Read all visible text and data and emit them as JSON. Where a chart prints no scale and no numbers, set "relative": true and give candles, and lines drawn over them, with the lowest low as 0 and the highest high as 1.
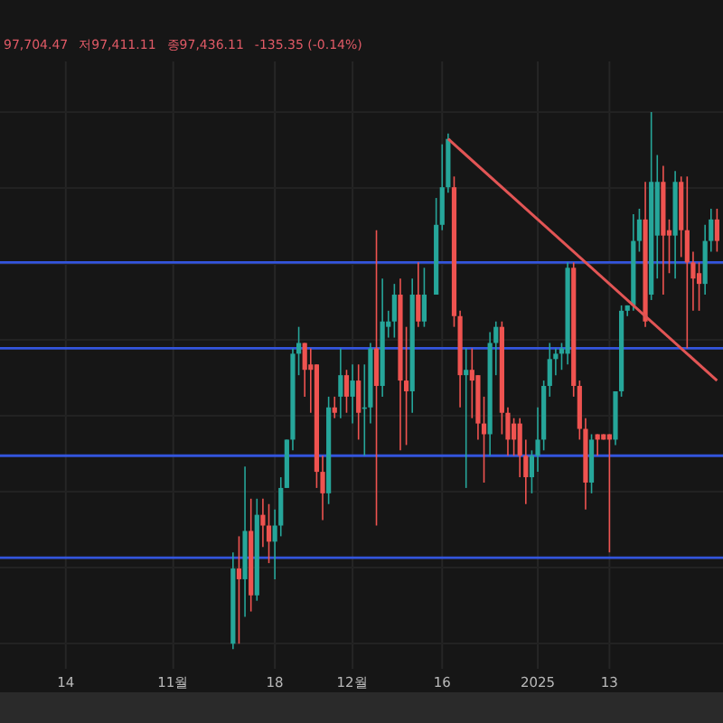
{
  "chart_data": {
    "type": "candlestick",
    "relative": true,
    "grid": true,
    "annotations": [
      "97,704.47",
      "저97,411.11",
      "종97,436.11",
      "-135.35 (-0.14%)"
    ],
    "xlim": [
      "2024-10-03",
      "2025-02-01"
    ],
    "xticks": [
      {
        "value": "2024-10-14",
        "label": "14"
      },
      {
        "value": "2024-11-01",
        "label": "11월"
      },
      {
        "value": "2024-11-18",
        "label": "18"
      },
      {
        "value": "2024-12-01",
        "label": "12월"
      },
      {
        "value": "2024-12-16",
        "label": "16"
      },
      {
        "value": "2025-01-01",
        "label": "2025"
      },
      {
        "value": "2025-01-13",
        "label": "13"
      }
    ],
    "x": [
      "2024-11-11",
      "2024-11-12",
      "2024-11-13",
      "2024-11-14",
      "2024-11-15",
      "2024-11-16",
      "2024-11-17",
      "2024-11-18",
      "2024-11-19",
      "2024-11-20",
      "2024-11-21",
      "2024-11-22",
      "2024-11-23",
      "2024-11-24",
      "2024-11-25",
      "2024-11-26",
      "2024-11-27",
      "2024-11-28",
      "2024-11-29",
      "2024-11-30",
      "2024-12-01",
      "2024-12-02",
      "2024-12-03",
      "2024-12-04",
      "2024-12-05",
      "2024-12-06",
      "2024-12-07",
      "2024-12-08",
      "2024-12-09",
      "2024-12-10",
      "2024-12-11",
      "2024-12-12",
      "2024-12-13",
      "2024-12-15",
      "2024-12-16",
      "2024-12-17",
      "2024-12-18",
      "2024-12-19",
      "2024-12-20",
      "2024-12-21",
      "2024-12-22",
      "2024-12-23",
      "2024-12-24",
      "2024-12-25",
      "2024-12-26",
      "2024-12-27",
      "2024-12-28",
      "2024-12-29",
      "2024-12-30",
      "2024-12-31",
      "2025-01-01",
      "2025-01-02",
      "2025-01-03",
      "2025-01-04",
      "2025-01-05",
      "2025-01-06",
      "2025-01-07",
      "2025-01-08",
      "2025-01-09",
      "2025-01-10",
      "2025-01-11",
      "2025-01-12",
      "2025-01-13",
      "2025-01-14",
      "2025-01-15",
      "2025-01-16",
      "2025-01-17",
      "2025-01-18",
      "2025-01-19",
      "2025-01-20",
      "2025-01-21",
      "2025-01-22",
      "2025-01-23",
      "2025-01-24",
      "2025-01-25",
      "2025-01-26",
      "2025-01-27",
      "2025-01-28",
      "2025-01-29",
      "2025-01-30",
      "2025-01-31"
    ],
    "ohlc": [
      [
        0.01,
        0.18,
        0,
        0.15
      ],
      [
        0.15,
        0.21,
        0.01,
        0.13
      ],
      [
        0.13,
        0.34,
        0.06,
        0.22
      ],
      [
        0.22,
        0.28,
        0.07,
        0.1
      ],
      [
        0.1,
        0.28,
        0.09,
        0.25
      ],
      [
        0.25,
        0.28,
        0.19,
        0.23
      ],
      [
        0.23,
        0.27,
        0.16,
        0.2
      ],
      [
        0.2,
        0.26,
        0.13,
        0.23
      ],
      [
        0.23,
        0.32,
        0.21,
        0.3
      ],
      [
        0.3,
        0.39,
        0.3,
        0.39
      ],
      [
        0.39,
        0.56,
        0.37,
        0.55
      ],
      [
        0.55,
        0.6,
        0.51,
        0.57
      ],
      [
        0.57,
        0.57,
        0.47,
        0.52
      ],
      [
        0.53,
        0.56,
        0.44,
        0.52
      ],
      [
        0.53,
        0.53,
        0.3,
        0.33
      ],
      [
        0.33,
        0.36,
        0.24,
        0.29
      ],
      [
        0.29,
        0.47,
        0.27,
        0.45
      ],
      [
        0.45,
        0.47,
        0.43,
        0.44
      ],
      [
        0.47,
        0.56,
        0.43,
        0.51
      ],
      [
        0.51,
        0.52,
        0.44,
        0.47
      ],
      [
        0.47,
        0.53,
        0.42,
        0.5
      ],
      [
        0.5,
        0.53,
        0.39,
        0.44
      ],
      [
        0.45,
        0.53,
        0.36,
        0.45
      ],
      [
        0.45,
        0.57,
        0.42,
        0.56
      ],
      [
        0.56,
        0.78,
        0.23,
        0.49
      ],
      [
        0.49,
        0.69,
        0.47,
        0.61
      ],
      [
        0.6,
        0.63,
        0.58,
        0.61
      ],
      [
        0.61,
        0.68,
        0.58,
        0.66
      ],
      [
        0.66,
        0.69,
        0.37,
        0.5
      ],
      [
        0.5,
        0.6,
        0.38,
        0.48
      ],
      [
        0.48,
        0.69,
        0.44,
        0.66
      ],
      [
        0.66,
        0.72,
        0.6,
        0.61
      ],
      [
        0.61,
        0.71,
        0.6,
        0.66
      ],
      [
        0.66,
        0.84,
        0.66,
        0.79
      ],
      [
        0.79,
        0.94,
        0.78,
        0.86
      ],
      [
        0.86,
        0.96,
        0.85,
        0.95
      ],
      [
        0.86,
        0.88,
        0.6,
        0.62
      ],
      [
        0.62,
        0.63,
        0.45,
        0.51
      ],
      [
        0.51,
        0.56,
        0.3,
        0.52
      ],
      [
        0.52,
        0.56,
        0.43,
        0.5
      ],
      [
        0.51,
        0.51,
        0.39,
        0.42
      ],
      [
        0.42,
        0.47,
        0.31,
        0.4
      ],
      [
        0.4,
        0.59,
        0.36,
        0.57
      ],
      [
        0.57,
        0.61,
        0.51,
        0.6
      ],
      [
        0.6,
        0.61,
        0.4,
        0.44
      ],
      [
        0.44,
        0.45,
        0.36,
        0.39
      ],
      [
        0.42,
        0.43,
        0.36,
        0.39
      ],
      [
        0.42,
        0.43,
        0.32,
        0.36
      ],
      [
        0.36,
        0.39,
        0.27,
        0.32
      ],
      [
        0.32,
        0.37,
        0.29,
        0.36
      ],
      [
        0.36,
        0.45,
        0.33,
        0.39
      ],
      [
        0.39,
        0.5,
        0.37,
        0.49
      ],
      [
        0.49,
        0.57,
        0.47,
        0.54
      ],
      [
        0.54,
        0.56,
        0.51,
        0.55
      ],
      [
        0.55,
        0.57,
        0.52,
        0.56
      ],
      [
        0.55,
        0.72,
        0.53,
        0.71
      ],
      [
        0.71,
        0.72,
        0.47,
        0.49
      ],
      [
        0.49,
        0.5,
        0.39,
        0.41
      ],
      [
        0.41,
        0.43,
        0.26,
        0.31
      ],
      [
        0.31,
        0.4,
        0.29,
        0.39
      ],
      [
        0.4,
        0.4,
        0.36,
        0.39
      ],
      [
        0.4,
        0.4,
        0.39,
        0.39
      ],
      [
        0.4,
        0.4,
        0.18,
        0.39
      ],
      [
        0.39,
        0.48,
        0.38,
        0.48
      ],
      [
        0.48,
        0.64,
        0.47,
        0.63
      ],
      [
        0.63,
        0.64,
        0.62,
        0.64
      ],
      [
        0.64,
        0.81,
        0.63,
        0.76
      ],
      [
        0.76,
        0.82,
        0.74,
        0.8
      ],
      [
        0.8,
        0.87,
        0.6,
        0.61
      ],
      [
        0.66,
        1,
        0.65,
        0.87
      ],
      [
        0.77,
        0.92,
        0.69,
        0.87
      ],
      [
        0.87,
        0.9,
        0.66,
        0.77
      ],
      [
        0.78,
        0.8,
        0.7,
        0.77
      ],
      [
        0.77,
        0.89,
        0.69,
        0.87
      ],
      [
        0.87,
        0.88,
        0.73,
        0.78
      ],
      [
        0.78,
        0.88,
        0.56,
        0.72
      ],
      [
        0.72,
        0.74,
        0.63,
        0.69
      ],
      [
        0.7,
        0.72,
        0.63,
        0.68
      ],
      [
        0.68,
        0.79,
        0.66,
        0.76
      ],
      [
        0.76,
        0.82,
        0.74,
        0.8
      ],
      [
        0.8,
        0.82,
        0.74,
        0.76
      ]
    ],
    "series": [
      {
        "type": "line",
        "color": "#e25555",
        "x": [
          "2024-12-17",
          "2025-01-31"
        ],
        "values": [
          0.95,
          0.5
        ]
      }
    ],
    "ref_lines": [
      {
        "axis": "y",
        "value": 0.72,
        "color": "#3355dd"
      },
      {
        "axis": "y",
        "value": 0.56,
        "color": "#3355dd"
      },
      {
        "axis": "y",
        "value": 0.36,
        "color": "#3355dd"
      },
      {
        "axis": "y",
        "value": 0.17,
        "color": "#3355dd"
      }
    ]
  }
}
